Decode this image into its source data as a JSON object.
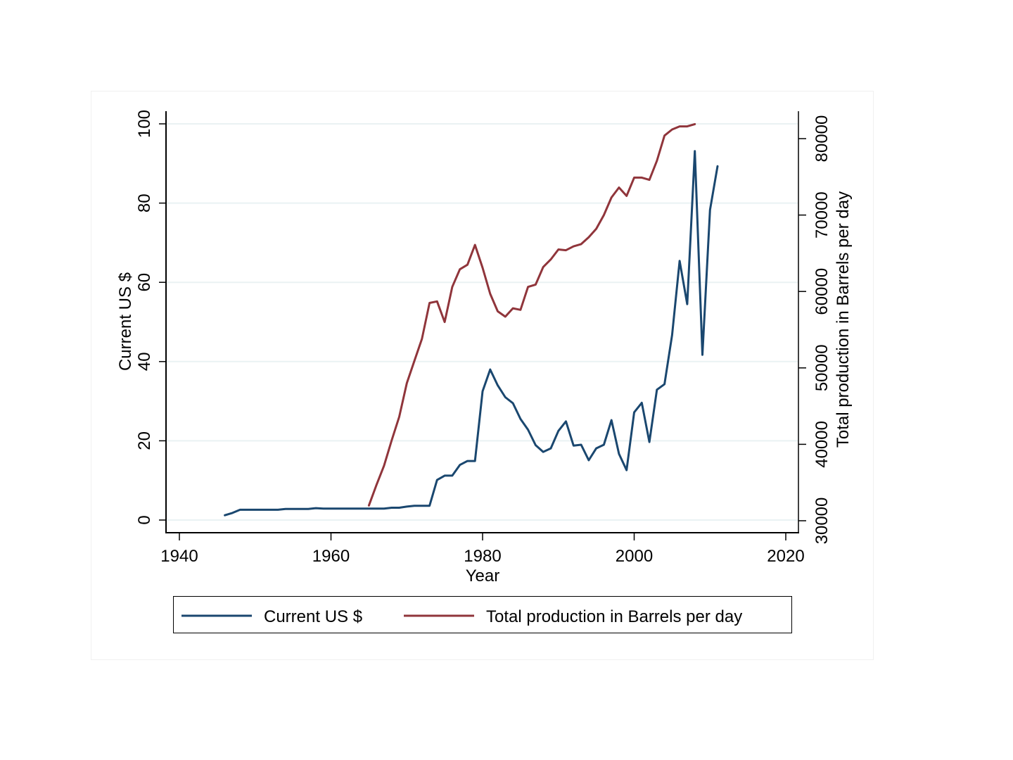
{
  "chart_data": {
    "type": "line",
    "title": "",
    "xlabel": "Year",
    "ylabel_left": "Current US $",
    "ylabel_right": "Total production in Barrels per day",
    "xlim": [
      1940,
      2020
    ],
    "ylim_left": [
      0,
      100
    ],
    "ylim_right": [
      30000,
      80000
    ],
    "x_ticks": [
      1940,
      1960,
      1980,
      2000,
      2020
    ],
    "x_tick_labels": [
      "1940",
      "1960",
      "1980",
      "2000",
      "2020"
    ],
    "y_left_ticks": [
      0,
      20,
      40,
      60,
      80,
      100
    ],
    "y_left_tick_labels": [
      "0",
      "20",
      "40",
      "60",
      "80",
      "100"
    ],
    "y_right_ticks": [
      30000,
      40000,
      50000,
      60000,
      70000,
      80000
    ],
    "y_right_tick_labels": [
      "30000",
      "40000",
      "50000",
      "60000",
      "70000",
      "80000"
    ],
    "grid": true,
    "legend_position": "bottom",
    "series": [
      {
        "name": "Current US $",
        "axis": "left",
        "color": "#1a476f",
        "x": [
          1946,
          1947,
          1948,
          1949,
          1950,
          1951,
          1952,
          1953,
          1954,
          1955,
          1956,
          1957,
          1958,
          1959,
          1960,
          1961,
          1962,
          1963,
          1964,
          1965,
          1966,
          1967,
          1968,
          1969,
          1970,
          1971,
          1972,
          1973,
          1974,
          1975,
          1976,
          1977,
          1978,
          1979,
          1980,
          1981,
          1982,
          1983,
          1984,
          1985,
          1986,
          1987,
          1988,
          1989,
          1990,
          1991,
          1992,
          1993,
          1994,
          1995,
          1996,
          1997,
          1998,
          1999,
          2000,
          2001,
          2002,
          2003,
          2004,
          2005,
          2006,
          2007,
          2008,
          2009,
          2010,
          2011
        ],
        "values": [
          1.2,
          1.8,
          2.6,
          2.6,
          2.6,
          2.6,
          2.6,
          2.6,
          2.8,
          2.8,
          2.8,
          2.8,
          3.0,
          2.9,
          2.9,
          2.9,
          2.9,
          2.9,
          2.9,
          2.9,
          2.9,
          2.9,
          3.1,
          3.1,
          3.4,
          3.6,
          3.6,
          3.6,
          10.1,
          11.2,
          11.2,
          13.9,
          14.9,
          14.9,
          32.5,
          38.0,
          34.0,
          31.0,
          29.5,
          25.5,
          22.8,
          18.9,
          17.2,
          18.1,
          22.5,
          24.9,
          18.8,
          19.0,
          15.1,
          18.1,
          19.0,
          25.2,
          16.7,
          12.6,
          27.2,
          29.6,
          19.7,
          32.9,
          34.3,
          46.7,
          65.4,
          54.5,
          93.1,
          41.7,
          78.3,
          89.3
        ]
      },
      {
        "name": "Total production in Barrels per day",
        "axis": "right",
        "color": "#90353b",
        "x": [
          1965,
          1966,
          1967,
          1968,
          1969,
          1970,
          1971,
          1972,
          1973,
          1974,
          1975,
          1976,
          1977,
          1978,
          1979,
          1980,
          1981,
          1982,
          1983,
          1984,
          1985,
          1986,
          1987,
          1988,
          1989,
          1990,
          1991,
          1992,
          1993,
          1994,
          1995,
          1996,
          1997,
          1998,
          1999,
          2000,
          2001,
          2002,
          2003,
          2004,
          2005,
          2006,
          2007,
          2008
        ],
        "values": [
          32000,
          34700,
          37200,
          40500,
          43600,
          48000,
          50900,
          53800,
          58500,
          58700,
          56000,
          60600,
          62900,
          63500,
          66100,
          63100,
          59700,
          57400,
          56700,
          57800,
          57600,
          60600,
          60900,
          63200,
          64200,
          65500,
          65400,
          65900,
          66200,
          67100,
          68200,
          70000,
          72300,
          73600,
          72500,
          74900,
          74900,
          74600,
          77100,
          80400,
          81200,
          81600,
          81600,
          81900
        ]
      }
    ]
  },
  "legend": {
    "items": [
      {
        "label": "Current US $",
        "color": "#1a476f"
      },
      {
        "label": "Total production in Barrels per day",
        "color": "#90353b"
      }
    ]
  },
  "colors": {
    "grid": "#eaf2f3",
    "axis": "#000000"
  }
}
